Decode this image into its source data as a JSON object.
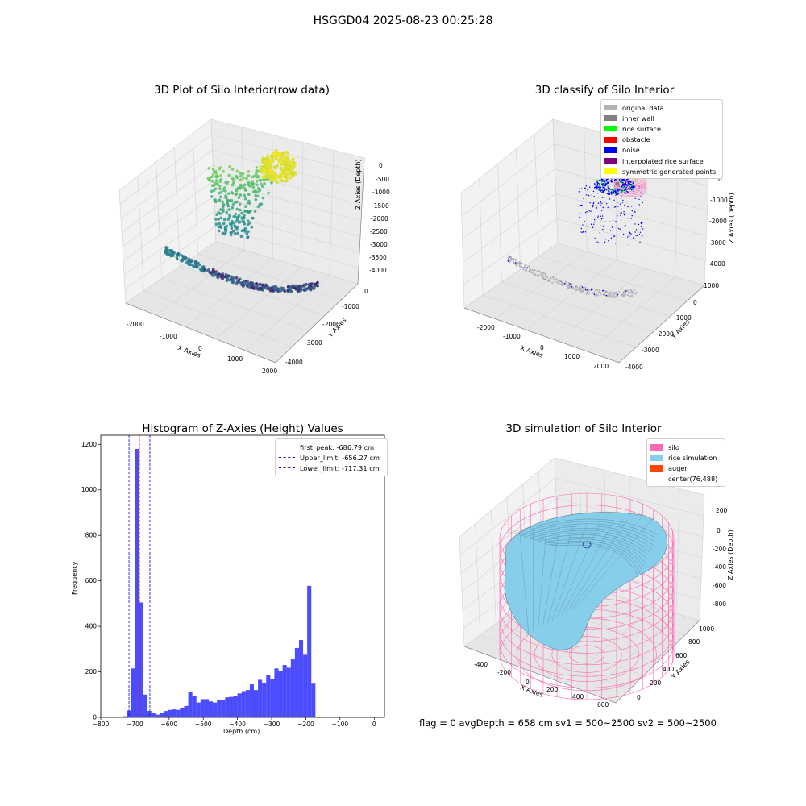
{
  "suptitle": "HSGGD04 2025-08-23 00:25:28",
  "panel1": {
    "title": "3D Plot of Silo Interior(row data)",
    "xlabel": "X Axies",
    "ylabel": "Y Axies",
    "zlabel": "Z Axies (Depth)",
    "xticks": [
      "-2000",
      "-1000",
      "0",
      "1000",
      "2000"
    ],
    "yticks": [
      "0",
      "-1000",
      "-2000",
      "-3000",
      "-4000"
    ],
    "zticks": [
      "0",
      "-500",
      "-1000",
      "-1500",
      "-2000",
      "-2500",
      "-3000",
      "-3500",
      "-4000"
    ]
  },
  "panel2": {
    "title": "3D classify of Silo Interior",
    "xlabel": "X Axies",
    "ylabel": "Y Axies",
    "zlabel": "Z Axies (Depth)",
    "xticks": [
      "-2000",
      "-1000",
      "0",
      "1000",
      "2000"
    ],
    "yticks": [
      "1000",
      "0",
      "-1000",
      "-2000",
      "-3000",
      "-4000"
    ],
    "zticks": [
      "0",
      "-1000",
      "-2000",
      "-3000",
      "-4000"
    ],
    "legend": [
      {
        "label": "original data",
        "color": "#b3b3b3"
      },
      {
        "label": "inner wall",
        "color": "#808080"
      },
      {
        "label": "rice surface",
        "color": "#00ff00"
      },
      {
        "label": "obstacle",
        "color": "#ff0000"
      },
      {
        "label": "noise",
        "color": "#0000ff"
      },
      {
        "label": "interpolated rice surface",
        "color": "#800080"
      },
      {
        "label": "symmetric generated points",
        "color": "#ffff00"
      }
    ]
  },
  "panel3": {
    "title": "Histogram of Z-Axies (Height) Values",
    "xlabel": "Depth (cm)",
    "ylabel": "Frequency",
    "legend": [
      {
        "label": "first_peak: -686.79 cm",
        "color": "#ff0000"
      },
      {
        "label": "Upper_limit: -656.27 cm",
        "color": "#0000ff"
      },
      {
        "label": "Lower_limit: -717.31 cm",
        "color": "#0000ff"
      }
    ]
  },
  "panel4": {
    "title": "3D simulation of Silo Interior",
    "xlabel": "X Axies",
    "ylabel": "Y Axies",
    "zlabel": "Z Axies (Depth)",
    "xticks": [
      "-400",
      "-200",
      "0",
      "200",
      "400",
      "600"
    ],
    "yticks": [
      "1000",
      "800",
      "600",
      "400",
      "200",
      "0"
    ],
    "zticks": [
      "200",
      "0",
      "-200",
      "-400",
      "-600",
      "-800"
    ],
    "legend": [
      {
        "label": "silo",
        "color": "#ff69b4"
      },
      {
        "label": "rice simulation",
        "color": "#87ceeb"
      },
      {
        "label": "auger",
        "color": "#ff4500"
      },
      {
        "label": "center(76,488)",
        "color": ""
      }
    ]
  },
  "bottom_text": "flag = 0     avgDepth = 658 cm  sv1 = 500~2500  sv2 = 500~2500",
  "chart_data": [
    {
      "type": "scatter",
      "title": "3D Plot of Silo Interior(row data)",
      "xlabel": "X Axies",
      "ylabel": "Y Axies",
      "zlabel": "Z Axies (Depth)",
      "xlim": [
        -2400,
        2000
      ],
      "ylim": [
        -4400,
        500
      ],
      "zlim": [
        -4200,
        300
      ]
    },
    {
      "type": "scatter",
      "title": "3D classify of Silo Interior",
      "xlabel": "X Axies",
      "ylabel": "Y Axies",
      "zlabel": "Z Axies (Depth)",
      "series": [
        {
          "name": "original data",
          "color": "#b3b3b3"
        },
        {
          "name": "inner wall",
          "color": "#808080"
        },
        {
          "name": "rice surface",
          "color": "#00ff00"
        },
        {
          "name": "obstacle",
          "color": "#ff0000"
        },
        {
          "name": "noise",
          "color": "#0000ff"
        },
        {
          "name": "interpolated rice surface",
          "color": "#800080"
        },
        {
          "name": "symmetric generated points",
          "color": "#ffff00"
        }
      ]
    },
    {
      "type": "bar",
      "title": "Histogram of Z-Axies (Height) Values",
      "xlabel": "Depth (cm)",
      "ylabel": "Frequency",
      "xlim": [
        -800,
        30
      ],
      "ylim": [
        0,
        1240
      ],
      "xticks": [
        -800,
        -700,
        -600,
        -500,
        -400,
        -300,
        -200,
        -100,
        0
      ],
      "yticks": [
        0,
        200,
        400,
        600,
        800,
        1000,
        1200
      ],
      "bin_edges_start": -760,
      "bin_width": 12,
      "values": [
        2,
        3,
        5,
        30,
        215,
        1180,
        505,
        100,
        28,
        20,
        12,
        20,
        28,
        33,
        35,
        33,
        42,
        50,
        112,
        95,
        65,
        80,
        80,
        70,
        65,
        75,
        75,
        88,
        90,
        95,
        105,
        115,
        120,
        145,
        120,
        165,
        150,
        185,
        170,
        215,
        205,
        230,
        218,
        255,
        305,
        340,
        275,
        578,
        148
      ],
      "vlines": [
        {
          "name": "first_peak: -686.79 cm",
          "x": -686.79,
          "color": "#ff0000"
        },
        {
          "name": "Upper_limit: -656.27 cm",
          "x": -656.27,
          "color": "#0000ff"
        },
        {
          "name": "Lower_limit: -717.31 cm",
          "x": -717.31,
          "color": "#0000ff"
        }
      ]
    },
    {
      "type": "area",
      "title": "3D simulation of Silo Interior",
      "xlabel": "X Axies",
      "ylabel": "Y Axies",
      "zlabel": "Z Axies (Depth)",
      "series": [
        {
          "name": "silo",
          "color": "#ff69b4"
        },
        {
          "name": "rice simulation",
          "color": "#87ceeb"
        },
        {
          "name": "auger",
          "color": "#ff4500"
        },
        {
          "name": "center(76,488)",
          "color": ""
        }
      ]
    }
  ]
}
